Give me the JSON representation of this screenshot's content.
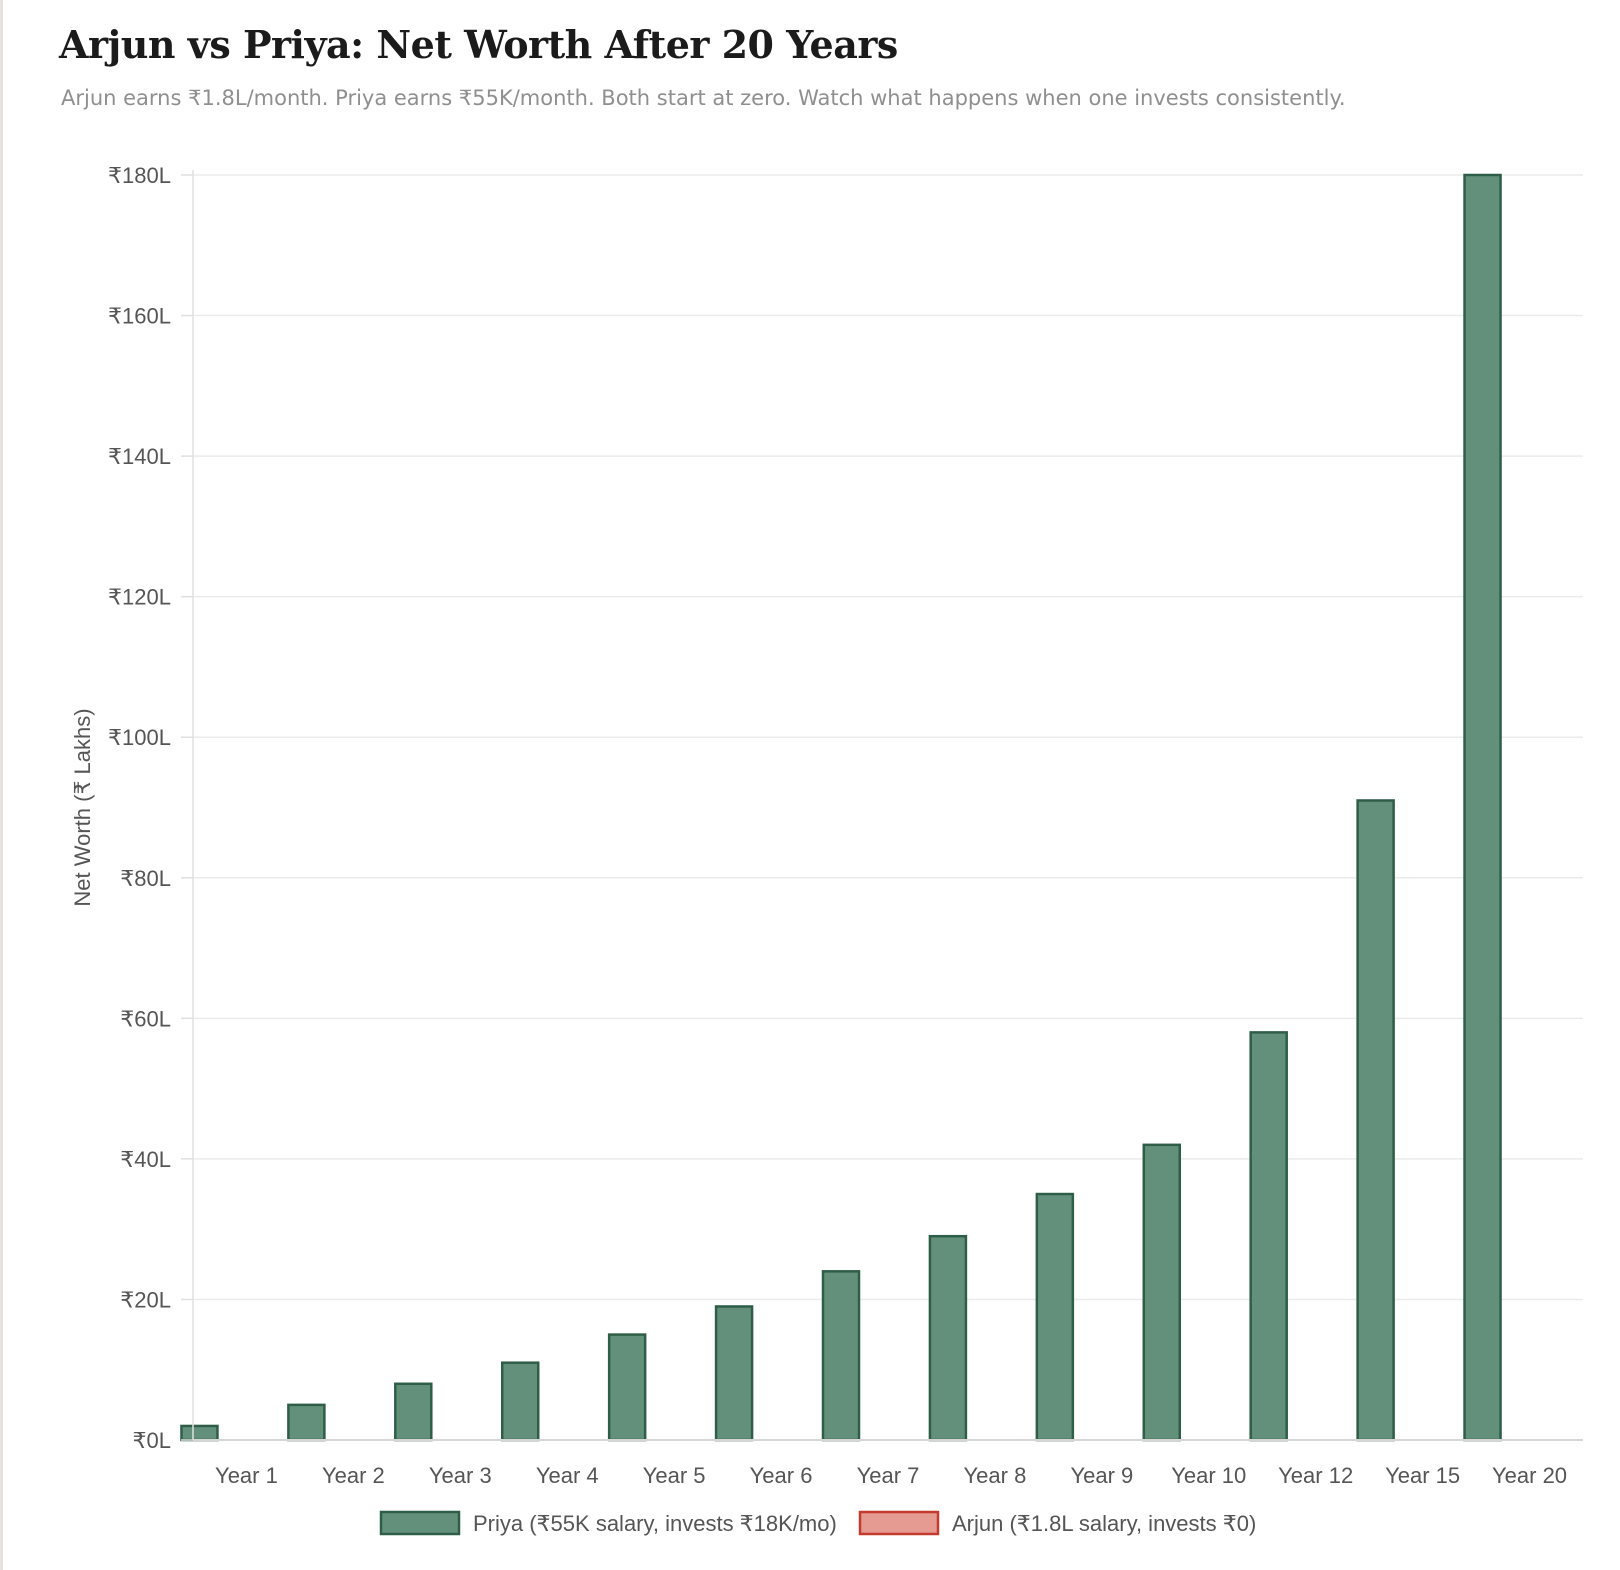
{
  "header": {
    "title": "Arjun vs Priya: Net Worth After 20 Years",
    "subtitle": "Arjun earns ₹1.8L/month. Priya earns ₹55K/month. Both start at zero. Watch what happens when one invests consistently."
  },
  "chart_data": {
    "type": "bar",
    "title": "Arjun vs Priya: Net Worth After 20 Years",
    "subtitle": "Arjun earns ₹1.8L/month. Priya earns ₹55K/month. Both start at zero. Watch what happens when one invests consistently.",
    "xlabel": "",
    "ylabel": "Net Worth (₹ Lakhs)",
    "ylim": [
      0,
      180
    ],
    "yticks": [
      0,
      20,
      40,
      60,
      80,
      100,
      120,
      140,
      160,
      180
    ],
    "ytick_labels": [
      "₹0L",
      "₹20L",
      "₹40L",
      "₹60L",
      "₹80L",
      "₹100L",
      "₹120L",
      "₹140L",
      "₹160L",
      "₹180L"
    ],
    "categories": [
      "Year 1",
      "Year 2",
      "Year 3",
      "Year 4",
      "Year 5",
      "Year 6",
      "Year 7",
      "Year 8",
      "Year 9",
      "Year 10",
      "Year 12",
      "Year 15",
      "Year 20"
    ],
    "series": [
      {
        "name": "Priya (₹55K salary, invests ₹18K/mo)",
        "values": [
          2,
          5,
          8,
          11,
          15,
          19,
          24,
          29,
          35,
          42,
          58,
          91,
          180
        ],
        "fill": "#63907a",
        "stroke": "#2f5e48"
      },
      {
        "name": "Arjun (₹1.8L salary, invests ₹0)",
        "values": [
          0,
          0,
          0,
          0,
          0,
          0,
          0,
          0,
          0,
          0,
          0,
          0,
          0
        ],
        "fill": "#e59a92",
        "stroke": "#c43a2e"
      }
    ],
    "grid": true,
    "legend": "bottom-center"
  }
}
